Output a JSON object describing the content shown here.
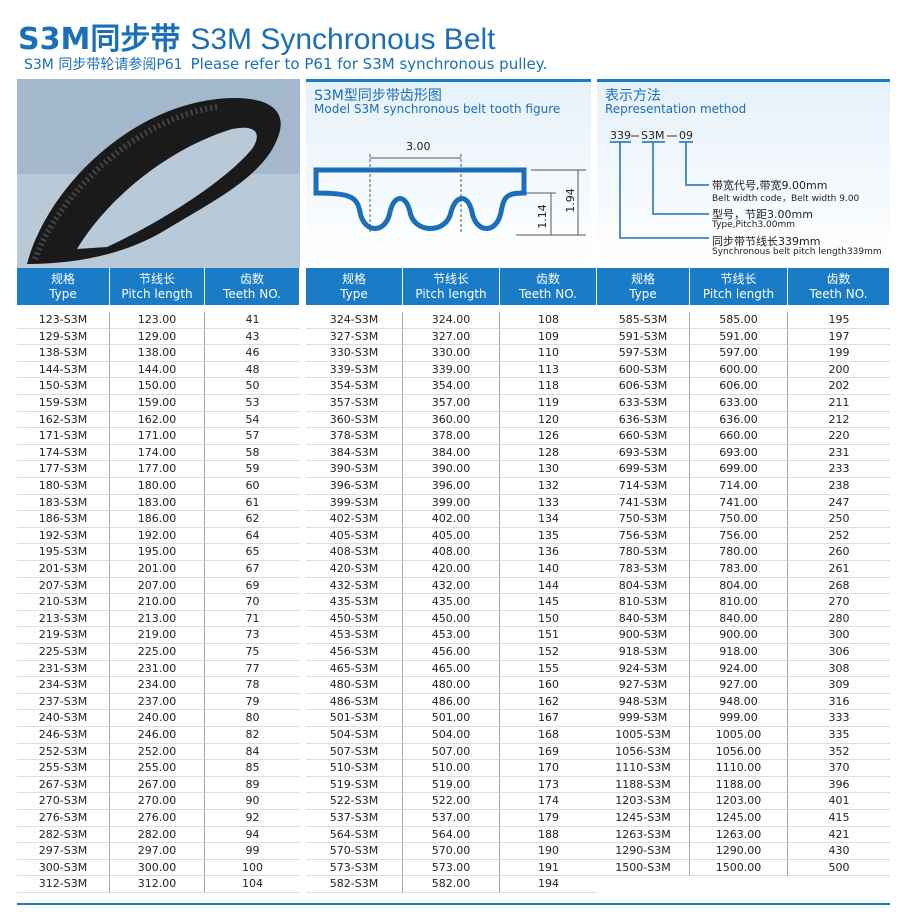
{
  "header": {
    "title_cn": "S3M同步带",
    "title_en": "S3M Synchronous Belt",
    "subtitle_cn": "S3M 同步带轮请参阅P61",
    "subtitle_en": "Please refer to P61 for S3M synchronous pulley."
  },
  "tooth_figure": {
    "title": "S3M型同步带齿形图",
    "subtitle": "Model S3M synchronous belt tooth figure",
    "pitch": "3.00",
    "tooth_height": "1.14",
    "belt_height": "1.94"
  },
  "representation": {
    "title": "表示方法",
    "subtitle": "Representation method",
    "code_parts": [
      "339",
      "S3M",
      "09"
    ],
    "labels": [
      {
        "cn": "带宽代号,带宽9.00mm",
        "en": "Belt width code，Belt width 9.00"
      },
      {
        "cn": "型号，节距3.00mm",
        "en": "Type,Pitch3.00mm"
      },
      {
        "cn": "同步带节线长339mm",
        "en": "Synchronous belt pitch length339mm"
      }
    ]
  },
  "tables": [
    {
      "headers": [
        [
          "规格",
          "Type"
        ],
        [
          "节线长",
          "Pitch length"
        ],
        [
          "齿数",
          "Teeth NO."
        ]
      ],
      "rows": [
        [
          "123-S3M",
          "123.00",
          "41"
        ],
        [
          "129-S3M",
          "129.00",
          "43"
        ],
        [
          "138-S3M",
          "138.00",
          "46"
        ],
        [
          "144-S3M",
          "144.00",
          "48"
        ],
        [
          "150-S3M",
          "150.00",
          "50"
        ],
        [
          "159-S3M",
          "159.00",
          "53"
        ],
        [
          "162-S3M",
          "162.00",
          "54"
        ],
        [
          "171-S3M",
          "171.00",
          "57"
        ],
        [
          "174-S3M",
          "174.00",
          "58"
        ],
        [
          "177-S3M",
          "177.00",
          "59"
        ],
        [
          "180-S3M",
          "180.00",
          "60"
        ],
        [
          "183-S3M",
          "183.00",
          "61"
        ],
        [
          "186-S3M",
          "186.00",
          "62"
        ],
        [
          "192-S3M",
          "192.00",
          "64"
        ],
        [
          "195-S3M",
          "195.00",
          "65"
        ],
        [
          "201-S3M",
          "201.00",
          "67"
        ],
        [
          "207-S3M",
          "207.00",
          "69"
        ],
        [
          "210-S3M",
          "210.00",
          "70"
        ],
        [
          "213-S3M",
          "213.00",
          "71"
        ],
        [
          "219-S3M",
          "219.00",
          "73"
        ],
        [
          "225-S3M",
          "225.00",
          "75"
        ],
        [
          "231-S3M",
          "231.00",
          "77"
        ],
        [
          "234-S3M",
          "234.00",
          "78"
        ],
        [
          "237-S3M",
          "237.00",
          "79"
        ],
        [
          "240-S3M",
          "240.00",
          "80"
        ],
        [
          "246-S3M",
          "246.00",
          "82"
        ],
        [
          "252-S3M",
          "252.00",
          "84"
        ],
        [
          "255-S3M",
          "255.00",
          "85"
        ],
        [
          "267-S3M",
          "267.00",
          "89"
        ],
        [
          "270-S3M",
          "270.00",
          "90"
        ],
        [
          "276-S3M",
          "276.00",
          "92"
        ],
        [
          "282-S3M",
          "282.00",
          "94"
        ],
        [
          "297-S3M",
          "297.00",
          "99"
        ],
        [
          "300-S3M",
          "300.00",
          "100"
        ],
        [
          "312-S3M",
          "312.00",
          "104"
        ]
      ]
    },
    {
      "headers": [
        [
          "规格",
          "Type"
        ],
        [
          "节线长",
          "Pitch length"
        ],
        [
          "齿数",
          "Teeth NO."
        ]
      ],
      "rows": [
        [
          "324-S3M",
          "324.00",
          "108"
        ],
        [
          "327-S3M",
          "327.00",
          "109"
        ],
        [
          "330-S3M",
          "330.00",
          "110"
        ],
        [
          "339-S3M",
          "339.00",
          "113"
        ],
        [
          "354-S3M",
          "354.00",
          "118"
        ],
        [
          "357-S3M",
          "357.00",
          "119"
        ],
        [
          "360-S3M",
          "360.00",
          "120"
        ],
        [
          "378-S3M",
          "378.00",
          "126"
        ],
        [
          "384-S3M",
          "384.00",
          "128"
        ],
        [
          "390-S3M",
          "390.00",
          "130"
        ],
        [
          "396-S3M",
          "396.00",
          "132"
        ],
        [
          "399-S3M",
          "399.00",
          "133"
        ],
        [
          "402-S3M",
          "402.00",
          "134"
        ],
        [
          "405-S3M",
          "405.00",
          "135"
        ],
        [
          "408-S3M",
          "408.00",
          "136"
        ],
        [
          "420-S3M",
          "420.00",
          "140"
        ],
        [
          "432-S3M",
          "432.00",
          "144"
        ],
        [
          "435-S3M",
          "435.00",
          "145"
        ],
        [
          "450-S3M",
          "450.00",
          "150"
        ],
        [
          "453-S3M",
          "453.00",
          "151"
        ],
        [
          "456-S3M",
          "456.00",
          "152"
        ],
        [
          "465-S3M",
          "465.00",
          "155"
        ],
        [
          "480-S3M",
          "480.00",
          "160"
        ],
        [
          "486-S3M",
          "486.00",
          "162"
        ],
        [
          "501-S3M",
          "501.00",
          "167"
        ],
        [
          "504-S3M",
          "504.00",
          "168"
        ],
        [
          "507-S3M",
          "507.00",
          "169"
        ],
        [
          "510-S3M",
          "510.00",
          "170"
        ],
        [
          "519-S3M",
          "519.00",
          "173"
        ],
        [
          "522-S3M",
          "522.00",
          "174"
        ],
        [
          "537-S3M",
          "537.00",
          "179"
        ],
        [
          "564-S3M",
          "564.00",
          "188"
        ],
        [
          "570-S3M",
          "570.00",
          "190"
        ],
        [
          "573-S3M",
          "573.00",
          "191"
        ],
        [
          "582-S3M",
          "582.00",
          "194"
        ]
      ]
    },
    {
      "headers": [
        [
          "规格",
          "Type"
        ],
        [
          "节线长",
          "Pitch length"
        ],
        [
          "齿数",
          "Teeth NO."
        ]
      ],
      "rows": [
        [
          "585-S3M",
          "585.00",
          "195"
        ],
        [
          "591-S3M",
          "591.00",
          "197"
        ],
        [
          "597-S3M",
          "597.00",
          "199"
        ],
        [
          "600-S3M",
          "600.00",
          "200"
        ],
        [
          "606-S3M",
          "606.00",
          "202"
        ],
        [
          "633-S3M",
          "633.00",
          "211"
        ],
        [
          "636-S3M",
          "636.00",
          "212"
        ],
        [
          "660-S3M",
          "660.00",
          "220"
        ],
        [
          "693-S3M",
          "693.00",
          "231"
        ],
        [
          "699-S3M",
          "699.00",
          "233"
        ],
        [
          "714-S3M",
          "714.00",
          "238"
        ],
        [
          "741-S3M",
          "741.00",
          "247"
        ],
        [
          "750-S3M",
          "750.00",
          "250"
        ],
        [
          "756-S3M",
          "756.00",
          "252"
        ],
        [
          "780-S3M",
          "780.00",
          "260"
        ],
        [
          "783-S3M",
          "783.00",
          "261"
        ],
        [
          "804-S3M",
          "804.00",
          "268"
        ],
        [
          "810-S3M",
          "810.00",
          "270"
        ],
        [
          "840-S3M",
          "840.00",
          "280"
        ],
        [
          "900-S3M",
          "900.00",
          "300"
        ],
        [
          "918-S3M",
          "918.00",
          "306"
        ],
        [
          "924-S3M",
          "924.00",
          "308"
        ],
        [
          "927-S3M",
          "927.00",
          "309"
        ],
        [
          "948-S3M",
          "948.00",
          "316"
        ],
        [
          "999-S3M",
          "999.00",
          "333"
        ],
        [
          "1005-S3M",
          "1005.00",
          "335"
        ],
        [
          "1056-S3M",
          "1056.00",
          "352"
        ],
        [
          "1110-S3M",
          "1110.00",
          "370"
        ],
        [
          "1188-S3M",
          "1188.00",
          "396"
        ],
        [
          "1203-S3M",
          "1203.00",
          "401"
        ],
        [
          "1245-S3M",
          "1245.00",
          "415"
        ],
        [
          "1263-S3M",
          "1263.00",
          "421"
        ],
        [
          "1290-S3M",
          "1290.00",
          "430"
        ],
        [
          "1500-S3M",
          "1500.00",
          "500"
        ]
      ]
    }
  ]
}
